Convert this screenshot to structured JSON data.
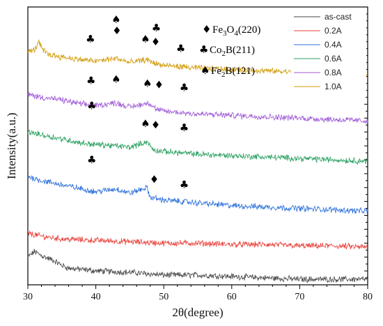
{
  "chart_data": {
    "type": "line",
    "xlabel": "2θ(degree)",
    "ylabel": "Intensity(a.u.)",
    "xlim": [
      30,
      80
    ],
    "xticks": [
      30,
      40,
      50,
      60,
      70,
      80
    ],
    "xtick_labels": [
      "30",
      "40",
      "50",
      "60",
      "70",
      "80"
    ],
    "y_ticks_labeled": false,
    "grid": false,
    "legend_position": "top-right",
    "series": [
      {
        "name": "as-cast",
        "color": "#444444",
        "x": [
          30,
          31,
          32,
          33,
          34,
          35,
          36,
          38,
          40,
          45,
          50,
          55,
          60,
          65,
          70,
          75,
          80
        ],
        "y": [
          0.1,
          0.12,
          0.105,
          0.095,
          0.085,
          0.07,
          0.06,
          0.055,
          0.05,
          0.045,
          0.035,
          0.035,
          0.03,
          0.025,
          0.02,
          0.02,
          0.02
        ]
      },
      {
        "name": "0.2A",
        "color": "#e8403a",
        "x": [
          30,
          32,
          35,
          40,
          45,
          50,
          55,
          60,
          65,
          70,
          75,
          80
        ],
        "y": [
          0.185,
          0.175,
          0.165,
          0.16,
          0.155,
          0.15,
          0.15,
          0.145,
          0.145,
          0.14,
          0.14,
          0.135
        ]
      },
      {
        "name": "0.4A",
        "color": "#2a6fdb",
        "x": [
          30,
          32,
          35,
          38,
          40,
          43,
          45,
          47.5,
          48,
          50,
          55,
          60,
          65,
          70,
          75,
          80
        ],
        "y": [
          0.39,
          0.375,
          0.36,
          0.345,
          0.335,
          0.345,
          0.33,
          0.35,
          0.315,
          0.305,
          0.295,
          0.285,
          0.28,
          0.275,
          0.27,
          0.265
        ]
      },
      {
        "name": "0.6A",
        "color": "#2aa060",
        "x": [
          30,
          32,
          35,
          38,
          40,
          43,
          45,
          47.5,
          48.5,
          50,
          55,
          60,
          65,
          70,
          75,
          80
        ],
        "y": [
          0.55,
          0.54,
          0.525,
          0.51,
          0.505,
          0.5,
          0.495,
          0.515,
          0.485,
          0.48,
          0.47,
          0.465,
          0.46,
          0.455,
          0.45,
          0.445
        ]
      },
      {
        "name": "0.8A",
        "color": "#9e59d6",
        "x": [
          30,
          32,
          35,
          38,
          40,
          43,
          45,
          47.8,
          49,
          50,
          55,
          60,
          65,
          70,
          75,
          80
        ],
        "y": [
          0.685,
          0.675,
          0.665,
          0.65,
          0.645,
          0.655,
          0.64,
          0.655,
          0.63,
          0.625,
          0.615,
          0.61,
          0.605,
          0.6,
          0.595,
          0.59
        ]
      },
      {
        "name": "1.0A",
        "color": "#d19a06",
        "x": [
          30,
          31,
          31.6,
          32.2,
          33,
          35,
          38,
          40,
          43,
          45,
          47.5,
          49,
          50,
          55,
          60,
          65,
          70,
          75,
          80
        ],
        "y": [
          0.84,
          0.845,
          0.875,
          0.845,
          0.83,
          0.82,
          0.81,
          0.805,
          0.815,
          0.8,
          0.81,
          0.795,
          0.79,
          0.78,
          0.775,
          0.77,
          0.765,
          0.76,
          0.755
        ]
      }
    ],
    "phase_legend": [
      {
        "symbol": "♦",
        "label_pre": "Fe",
        "sub1": "3",
        "label_mid": "O",
        "sub2": "4",
        "label_post": "(220)"
      },
      {
        "symbol": "♣",
        "label_pre": "Co",
        "sub1": "2",
        "label_mid": "B(211)",
        "sub2": "",
        "label_post": ""
      },
      {
        "symbol": "♠",
        "label_pre": "Fe",
        "sub1": "2",
        "label_mid": "B(121)",
        "sub2": "",
        "label_post": ""
      }
    ],
    "peak_markers": [
      {
        "series": "1.0A",
        "symbol": "♣",
        "x": 39.2,
        "y": 0.885
      },
      {
        "series": "1.0A",
        "symbol": "♠",
        "x": 43.0,
        "y": 0.955
      },
      {
        "series": "1.0A",
        "symbol": "♦",
        "x": 43.1,
        "y": 0.915
      },
      {
        "series": "1.0A",
        "symbol": "♠",
        "x": 47.3,
        "y": 0.885
      },
      {
        "series": "1.0A",
        "symbol": "♣",
        "x": 48.9,
        "y": 0.925
      },
      {
        "series": "1.0A",
        "symbol": "♦",
        "x": 48.8,
        "y": 0.875
      },
      {
        "series": "1.0A",
        "symbol": "♣",
        "x": 52.5,
        "y": 0.85
      },
      {
        "series": "0.8A",
        "symbol": "♣",
        "x": 39.3,
        "y": 0.735
      },
      {
        "series": "0.8A",
        "symbol": "♠",
        "x": 43.0,
        "y": 0.74
      },
      {
        "series": "0.8A",
        "symbol": "♠",
        "x": 47.6,
        "y": 0.725
      },
      {
        "series": "0.8A",
        "symbol": "♦",
        "x": 49.3,
        "y": 0.72
      },
      {
        "series": "0.8A",
        "symbol": "♣",
        "x": 53.0,
        "y": 0.71
      },
      {
        "series": "0.6A",
        "symbol": "♣",
        "x": 39.4,
        "y": 0.645
      },
      {
        "series": "0.6A",
        "symbol": "♠",
        "x": 47.3,
        "y": 0.58
      },
      {
        "series": "0.6A",
        "symbol": "♦",
        "x": 48.8,
        "y": 0.575
      },
      {
        "series": "0.6A",
        "symbol": "♣",
        "x": 53.0,
        "y": 0.565
      },
      {
        "series": "0.4A",
        "symbol": "♣",
        "x": 39.4,
        "y": 0.45
      },
      {
        "series": "0.4A",
        "symbol": "♦",
        "x": 48.6,
        "y": 0.38
      },
      {
        "series": "0.4A",
        "symbol": "♣",
        "x": 53.0,
        "y": 0.36
      }
    ]
  }
}
